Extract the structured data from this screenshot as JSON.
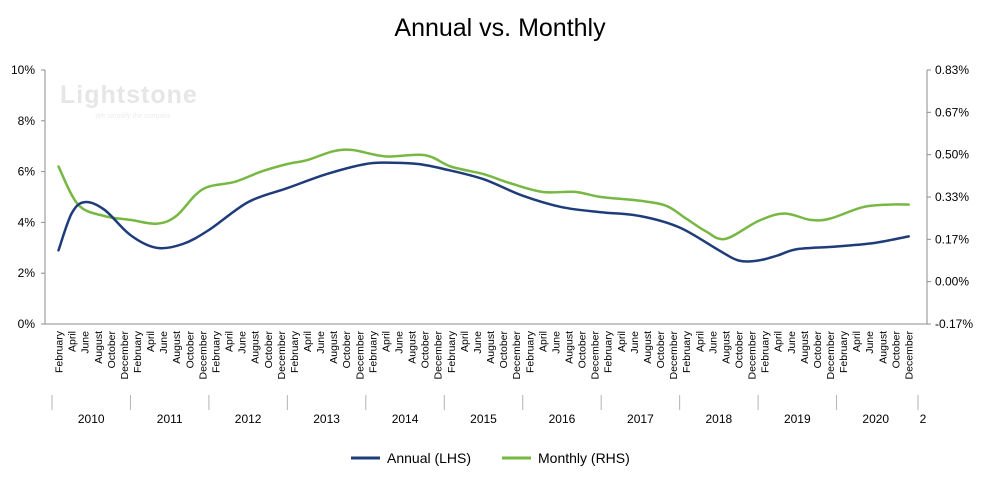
{
  "chart_data": {
    "type": "line",
    "title": "Annual vs. Monthly",
    "watermark": {
      "brand": "Lightstone",
      "tagline": "We simplify the complex"
    },
    "y_left": {
      "ticks": [
        "10%",
        "8%",
        "6%",
        "4%",
        "2%",
        "0%"
      ],
      "ylim": [
        0,
        10
      ]
    },
    "y_right": {
      "ticks": [
        "0.83%",
        "0.67%",
        "0.50%",
        "0.33%",
        "0.17%",
        "0.00%",
        "-0.17%"
      ],
      "ylim": [
        -0.17,
        0.83
      ]
    },
    "month_labels": [
      "February",
      "April",
      "June",
      "August",
      "October",
      "December"
    ],
    "years": [
      "2010",
      "2011",
      "2012",
      "2013",
      "2014",
      "2015",
      "2016",
      "2017",
      "2018",
      "2019",
      "2020",
      "2"
    ],
    "x_unit": "years since January 2010",
    "series": [
      {
        "name": "Annual (LHS)",
        "color": "#1f3c7a",
        "axis": "left",
        "x": [
          0.083,
          0.25,
          0.417,
          0.667,
          1.0,
          1.333,
          1.667,
          2.0,
          2.5,
          3.0,
          3.5,
          4.0,
          4.333,
          4.667,
          5.0,
          5.5,
          6.0,
          6.5,
          7.0,
          7.5,
          8.0,
          8.5,
          8.75,
          9.0,
          9.25,
          9.5,
          10.0,
          10.5,
          10.92
        ],
        "values": [
          2.9,
          4.35,
          4.8,
          4.5,
          3.5,
          3.0,
          3.15,
          3.7,
          4.8,
          5.35,
          5.9,
          6.3,
          6.35,
          6.3,
          6.1,
          5.7,
          5.05,
          4.6,
          4.4,
          4.25,
          3.8,
          2.9,
          2.5,
          2.5,
          2.7,
          2.95,
          3.05,
          3.2,
          3.45
        ]
      },
      {
        "name": "Monthly (RHS)",
        "color": "#77b843",
        "axis": "right",
        "x": [
          0.083,
          0.333,
          0.667,
          1.0,
          1.333,
          1.583,
          1.917,
          2.333,
          2.667,
          3.0,
          3.25,
          3.583,
          3.833,
          4.25,
          4.75,
          5.083,
          5.5,
          5.833,
          6.25,
          6.667,
          7.0,
          7.5,
          7.833,
          8.083,
          8.333,
          8.583,
          9.0,
          9.333,
          9.667,
          9.917,
          10.333,
          10.667,
          10.92
        ],
        "values": [
          0.45,
          0.3,
          0.255,
          0.24,
          0.225,
          0.255,
          0.36,
          0.39,
          0.43,
          0.46,
          0.475,
          0.51,
          0.515,
          0.49,
          0.495,
          0.45,
          0.42,
          0.385,
          0.35,
          0.35,
          0.33,
          0.315,
          0.295,
          0.245,
          0.195,
          0.165,
          0.235,
          0.265,
          0.24,
          0.245,
          0.29,
          0.3,
          0.3
        ]
      }
    ],
    "legend": {
      "placement": "bottom"
    },
    "grid": false
  }
}
